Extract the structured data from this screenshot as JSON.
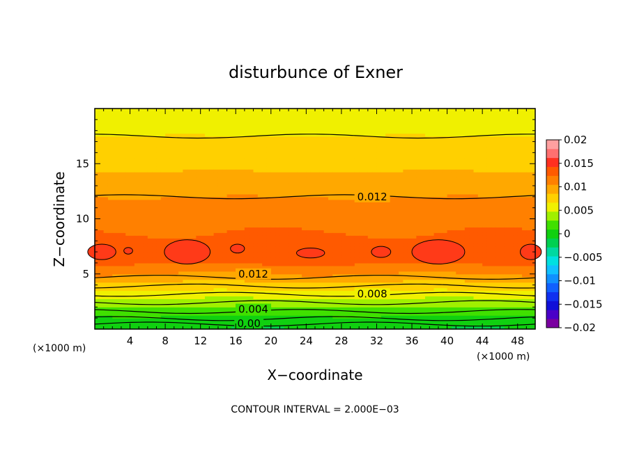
{
  "chart_data": {
    "type": "contour",
    "title": "disturbunce of Exner",
    "xlabel": "X−coordinate",
    "ylabel": "Z−coordinate",
    "x_unit": "(×1000 m)",
    "x_unit_right": "(×1000 m)",
    "x_ticks": [
      4,
      8,
      12,
      16,
      20,
      24,
      28,
      32,
      36,
      40,
      44,
      48
    ],
    "y_ticks": [
      5,
      10,
      15
    ],
    "xlim": [
      0,
      50
    ],
    "ylim": [
      0,
      20
    ],
    "contour_interval_text": "CONTOUR INTERVAL = 2.000E−03",
    "contour_interval": 0.002,
    "contour_labels": [
      {
        "text": "0.012",
        "x": 31.5,
        "z": 12.0
      },
      {
        "text": "0.012",
        "x": 18.0,
        "z": 5.0
      },
      {
        "text": "0.008",
        "x": 31.5,
        "z": 3.2
      },
      {
        "text": "0.004",
        "x": 18.0,
        "z": 1.8
      },
      {
        "text": "0.00",
        "x": 17.5,
        "z": 0.5
      }
    ],
    "colorbar": {
      "ticks": [
        "0.02",
        "0.015",
        "0.01",
        "0.005",
        "0",
        "−0.005",
        "−0.01",
        "−0.015",
        "−0.02"
      ],
      "levels": [
        -0.02,
        -0.018,
        -0.016,
        -0.014,
        -0.012,
        -0.01,
        -0.008,
        -0.006,
        -0.004,
        -0.002,
        0,
        0.002,
        0.004,
        0.006,
        0.008,
        0.01,
        0.012,
        0.014,
        0.016,
        0.018,
        0.02
      ],
      "colors": [
        "#7a00a0",
        "#4a00c8",
        "#1010d8",
        "#1030f0",
        "#1060ff",
        "#1090ff",
        "#10c0ff",
        "#00e0e0",
        "#00d8a0",
        "#00d050",
        "#10d010",
        "#40e000",
        "#a0f000",
        "#f0f000",
        "#ffd000",
        "#ffa800",
        "#ff8000",
        "#ff5a00",
        "#ff3020",
        "#ff7070",
        "#ffa0a0"
      ]
    }
  }
}
